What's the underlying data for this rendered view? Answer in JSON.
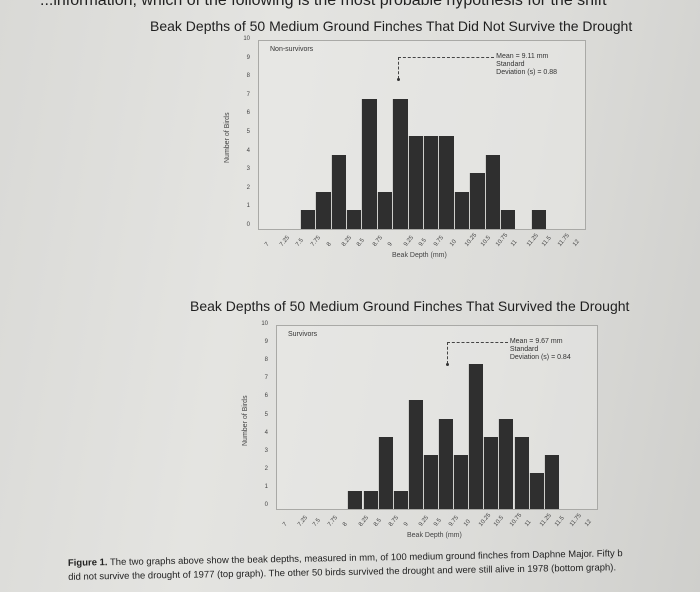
{
  "header": {
    "question_fragment": "...information, which of the following is the most probable hypothesis for the shift"
  },
  "caption": {
    "label": "Figure 1.",
    "line1": " The two graphs above show the beak depths, measured in mm, of 100 medium ground finches from Daphne Major. Fifty b",
    "line2": "did not survive the drought of 1977 (top graph). The other 50 birds survived the drought and were still alive in 1978 (bottom graph)."
  },
  "chart_data": [
    {
      "type": "bar",
      "title": "Beak Depths of 50 Medium Ground Finches That Did Not Survive the Drought",
      "legend": "Non-survivors",
      "annotation": {
        "mean": "Mean = 9.11 mm",
        "sd_line1": "Standard",
        "sd_line2": "Deviation (s) = 0.88"
      },
      "xlabel": "Beak Depth (mm)",
      "ylabel": "Number of Birds",
      "ylim": [
        0,
        10
      ],
      "yticks": [
        "0",
        "1",
        "2",
        "3",
        "4",
        "5",
        "6",
        "7",
        "8",
        "9",
        "10"
      ],
      "categories": [
        "7",
        "7.25",
        "7.5",
        "7.75",
        "8",
        "8.25",
        "8.5",
        "8.75",
        "9",
        "9.25",
        "9.5",
        "9.75",
        "10",
        "10.25",
        "10.5",
        "10.75",
        "11",
        "11.25",
        "11.5",
        "11.75",
        "12"
      ],
      "values": [
        0,
        0,
        1,
        2,
        4,
        1,
        7,
        2,
        7,
        5,
        5,
        5,
        2,
        3,
        4,
        1,
        0,
        1,
        0,
        0
      ],
      "grid": false
    },
    {
      "type": "bar",
      "title": "Beak Depths of 50 Medium Ground Finches That Survived the Drought",
      "legend": "Survivors",
      "annotation": {
        "mean": "Mean = 9.67 mm",
        "sd_line1": "Standard",
        "sd_line2": "Deviation (s) = 0.84"
      },
      "xlabel": "Beak Depth (mm)",
      "ylabel": "Number of Birds",
      "ylim": [
        0,
        10
      ],
      "yticks": [
        "0",
        "1",
        "2",
        "3",
        "4",
        "5",
        "6",
        "7",
        "8",
        "9",
        "10"
      ],
      "categories": [
        "7",
        "7.25",
        "7.5",
        "7.75",
        "8",
        "8.25",
        "8.5",
        "8.75",
        "9",
        "9.25",
        "9.5",
        "9.75",
        "10",
        "10.25",
        "10.5",
        "10.75",
        "11",
        "11.25",
        "11.5",
        "11.75",
        "12"
      ],
      "values": [
        0,
        0,
        0,
        0,
        1,
        1,
        4,
        1,
        6,
        3,
        5,
        3,
        8,
        4,
        5,
        4,
        2,
        3,
        0,
        0
      ],
      "grid": false
    }
  ]
}
